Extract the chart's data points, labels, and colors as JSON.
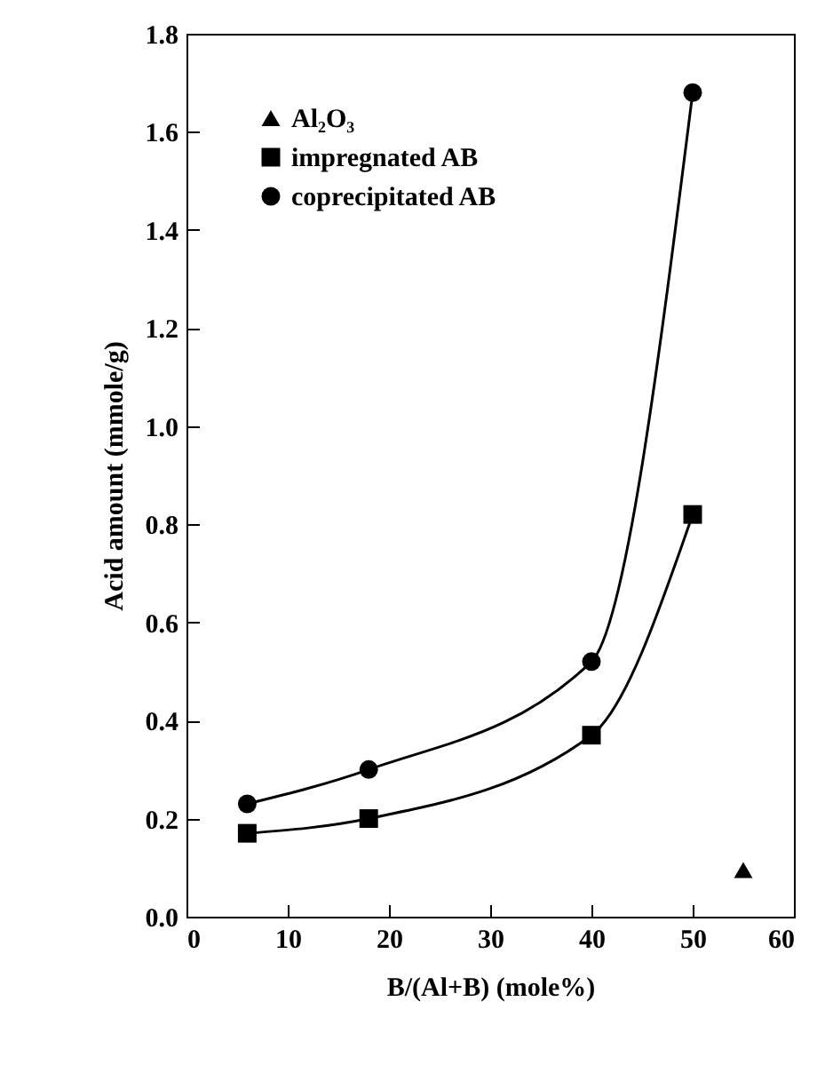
{
  "chart_data": {
    "type": "line",
    "xlabel": "B/(Al+B) (mole%)",
    "ylabel": "Acid amount (mmole/g)",
    "xlim": [
      0,
      60
    ],
    "xticks": [
      0,
      10,
      20,
      30,
      40,
      50,
      60
    ],
    "ylim": [
      0,
      1.8
    ],
    "yticks": [
      {
        "value": 0,
        "label": "0.0"
      },
      0.2,
      0.4,
      0.6,
      0.8,
      {
        "value": 1,
        "label": "1.0"
      },
      1.2,
      1.4,
      1.6,
      1.8
    ],
    "legend": "top left",
    "grid": false,
    "series": [
      {
        "name": "Al₂O₃",
        "type": "scatter",
        "marker": "triangle",
        "color": "#000000",
        "x": [
          55
        ],
        "values": [
          0.095
        ]
      },
      {
        "name": "impregnated AB",
        "type": "line",
        "marker": "square",
        "color": "#000000",
        "x": [
          6,
          18,
          40,
          50
        ],
        "values": [
          0.17,
          0.2,
          0.37,
          0.82
        ]
      },
      {
        "name": "coprecipitated AB",
        "type": "line",
        "marker": "circle",
        "color": "#000000",
        "x": [
          6,
          18,
          40,
          50
        ],
        "values": [
          0.23,
          0.3,
          0.52,
          1.68
        ]
      }
    ]
  }
}
